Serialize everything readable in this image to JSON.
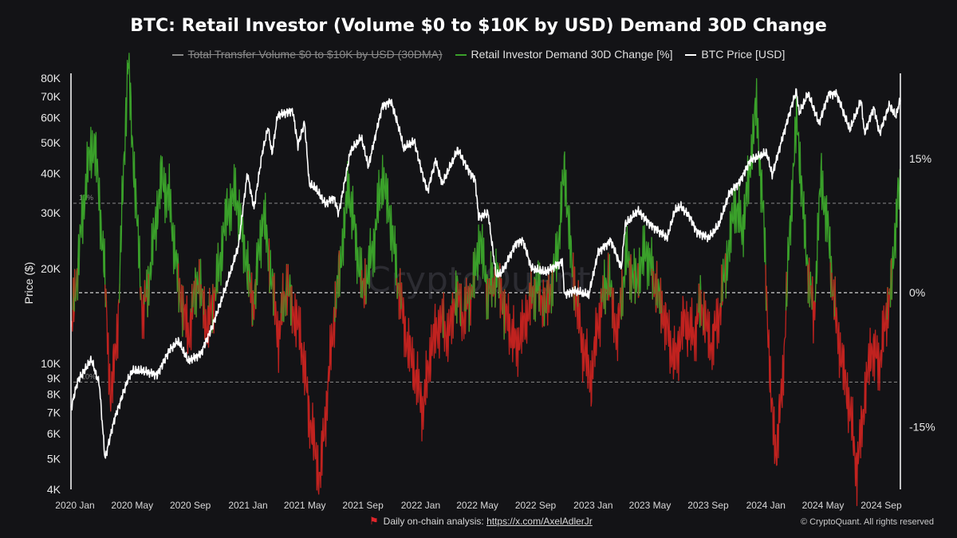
{
  "title": "BTC: Retail Investor (Volume $0 to $10K by USD) Demand 30D Change",
  "legend": [
    {
      "label": "Total Transfer Volume  $0 to $10K by USD (30DMA)",
      "color": "#8a8a8a",
      "state": "hidden"
    },
    {
      "label": "Retail Investor Demand 30D Change [%]",
      "color": "#3aa02a",
      "state": "visible"
    },
    {
      "label": "BTC Price [USD]",
      "color": "#ffffff",
      "state": "visible"
    }
  ],
  "footer": {
    "prefix": "Daily on-chain analysis: ",
    "link": "https://x.com/AxelAdlerJr"
  },
  "copyright": "© CryptoQuant. All rights reserved",
  "watermark": "CryptoQuant",
  "colors": {
    "positive": "#3aa02a",
    "negative": "#c0221f",
    "price": "#ffffff",
    "background": "#131316"
  },
  "chart_data": {
    "type": "line",
    "title": "BTC: Retail Investor (Volume $0 to $10K by USD) Demand 30D Change",
    "xlabel": "",
    "ylabel": "Price ($)",
    "y_scale": "log",
    "ylim": [
      4000,
      80000
    ],
    "y2lim": [
      -22,
      24
    ],
    "xlim": [
      "2020-01-01",
      "2024-10-20"
    ],
    "x_ticks": [
      {
        "date": "2020-01-01",
        "label": "2020 Jan"
      },
      {
        "date": "2020-05-01",
        "label": "2020 May"
      },
      {
        "date": "2020-09-01",
        "label": "2020 Sep"
      },
      {
        "date": "2021-01-01",
        "label": "2021 Jan"
      },
      {
        "date": "2021-05-01",
        "label": "2021 May"
      },
      {
        "date": "2021-09-01",
        "label": "2021 Sep"
      },
      {
        "date": "2022-01-01",
        "label": "2022 Jan"
      },
      {
        "date": "2022-05-01",
        "label": "2022 May"
      },
      {
        "date": "2022-09-01",
        "label": "2022 Sep"
      },
      {
        "date": "2023-01-01",
        "label": "2023 Jan"
      },
      {
        "date": "2023-05-01",
        "label": "2023 May"
      },
      {
        "date": "2023-09-01",
        "label": "2023 Sep"
      },
      {
        "date": "2024-01-01",
        "label": "2024 Jan"
      },
      {
        "date": "2024-05-01",
        "label": "2024 May"
      },
      {
        "date": "2024-09-01",
        "label": "2024 Sep"
      }
    ],
    "y_ticks": [
      {
        "value": 4000,
        "label": "4K"
      },
      {
        "value": 5000,
        "label": "5K"
      },
      {
        "value": 6000,
        "label": "6K"
      },
      {
        "value": 7000,
        "label": "7K"
      },
      {
        "value": 8000,
        "label": "8K"
      },
      {
        "value": 9000,
        "label": "9K"
      },
      {
        "value": 10000,
        "label": "10K"
      },
      {
        "value": 20000,
        "label": "20K"
      },
      {
        "value": 30000,
        "label": "30K"
      },
      {
        "value": 40000,
        "label": "40K"
      },
      {
        "value": 50000,
        "label": "50K"
      },
      {
        "value": 60000,
        "label": "60K"
      },
      {
        "value": 70000,
        "label": "70K"
      },
      {
        "value": 80000,
        "label": "80K"
      }
    ],
    "y2_ticks": [
      {
        "value": 15,
        "label": "15%"
      },
      {
        "value": 0,
        "label": "0%"
      },
      {
        "value": -15,
        "label": "-15%"
      }
    ],
    "reference_lines": [
      {
        "value": 10,
        "label": "10%"
      },
      {
        "value": 0,
        "label": ""
      },
      {
        "value": -10,
        "label": "-10%"
      }
    ],
    "series": [
      {
        "name": "BTC Price [USD]",
        "axis": "left",
        "color": "#ffffff",
        "points": [
          [
            "2020-01-01",
            7200
          ],
          [
            "2020-01-15",
            8800
          ],
          [
            "2020-02-13",
            10300
          ],
          [
            "2020-03-01",
            8600
          ],
          [
            "2020-03-13",
            5000
          ],
          [
            "2020-04-01",
            6600
          ],
          [
            "2020-04-29",
            8800
          ],
          [
            "2020-05-10",
            9500
          ],
          [
            "2020-06-01",
            9500
          ],
          [
            "2020-07-01",
            9200
          ],
          [
            "2020-07-27",
            11000
          ],
          [
            "2020-08-15",
            11800
          ],
          [
            "2020-09-05",
            10200
          ],
          [
            "2020-10-01",
            10700
          ],
          [
            "2020-10-25",
            13000
          ],
          [
            "2020-11-15",
            16000
          ],
          [
            "2020-12-01",
            19000
          ],
          [
            "2020-12-20",
            23500
          ],
          [
            "2021-01-08",
            40000
          ],
          [
            "2021-01-22",
            31000
          ],
          [
            "2021-02-08",
            46000
          ],
          [
            "2021-02-21",
            56000
          ],
          [
            "2021-03-01",
            46000
          ],
          [
            "2021-03-13",
            61000
          ],
          [
            "2021-04-14",
            63000
          ],
          [
            "2021-04-25",
            49000
          ],
          [
            "2021-05-09",
            58000
          ],
          [
            "2021-05-19",
            37000
          ],
          [
            "2021-06-01",
            36000
          ],
          [
            "2021-06-22",
            32000
          ],
          [
            "2021-07-10",
            33500
          ],
          [
            "2021-07-20",
            29800
          ],
          [
            "2021-08-14",
            47000
          ],
          [
            "2021-09-06",
            52000
          ],
          [
            "2021-09-21",
            42000
          ],
          [
            "2021-10-20",
            65000
          ],
          [
            "2021-11-08",
            67500
          ],
          [
            "2021-11-27",
            54000
          ],
          [
            "2021-12-04",
            48000
          ],
          [
            "2021-12-27",
            50500
          ],
          [
            "2022-01-10",
            41500
          ],
          [
            "2022-01-24",
            35000
          ],
          [
            "2022-02-10",
            44000
          ],
          [
            "2022-02-24",
            37000
          ],
          [
            "2022-03-29",
            47500
          ],
          [
            "2022-04-20",
            41000
          ],
          [
            "2022-05-05",
            38000
          ],
          [
            "2022-05-12",
            29000
          ],
          [
            "2022-06-01",
            30000
          ],
          [
            "2022-06-18",
            19000
          ],
          [
            "2022-07-01",
            19500
          ],
          [
            "2022-07-30",
            24000
          ],
          [
            "2022-08-14",
            24500
          ],
          [
            "2022-09-01",
            20000
          ],
          [
            "2022-10-01",
            19500
          ],
          [
            "2022-11-05",
            21000
          ],
          [
            "2022-11-10",
            16500
          ],
          [
            "2022-12-01",
            17000
          ],
          [
            "2022-12-31",
            16500
          ],
          [
            "2023-01-20",
            22500
          ],
          [
            "2023-02-16",
            24500
          ],
          [
            "2023-03-10",
            20000
          ],
          [
            "2023-03-18",
            27500
          ],
          [
            "2023-04-14",
            30500
          ],
          [
            "2023-05-10",
            27500
          ],
          [
            "2023-06-15",
            25000
          ],
          [
            "2023-07-01",
            30500
          ],
          [
            "2023-07-13",
            31500
          ],
          [
            "2023-08-01",
            29200
          ],
          [
            "2023-08-17",
            26000
          ],
          [
            "2023-09-11",
            25000
          ],
          [
            "2023-10-02",
            27500
          ],
          [
            "2023-10-24",
            34500
          ],
          [
            "2023-11-15",
            37500
          ],
          [
            "2023-12-08",
            44000
          ],
          [
            "2024-01-11",
            46500
          ],
          [
            "2024-01-23",
            39500
          ],
          [
            "2024-02-14",
            52000
          ],
          [
            "2024-03-05",
            66000
          ],
          [
            "2024-03-14",
            73000
          ],
          [
            "2024-03-20",
            62000
          ],
          [
            "2024-04-08",
            71500
          ],
          [
            "2024-05-01",
            57500
          ],
          [
            "2024-05-21",
            71000
          ],
          [
            "2024-06-07",
            71500
          ],
          [
            "2024-07-05",
            55000
          ],
          [
            "2024-07-29",
            68000
          ],
          [
            "2024-08-05",
            53500
          ],
          [
            "2024-08-25",
            64500
          ],
          [
            "2024-09-06",
            53500
          ],
          [
            "2024-09-27",
            66000
          ],
          [
            "2024-10-10",
            60500
          ],
          [
            "2024-10-20",
            68500
          ]
        ]
      },
      {
        "name": "Retail Investor Demand 30D Change [%]",
        "axis": "right",
        "color_positive": "#3aa02a",
        "color_negative": "#c0221f",
        "points": [
          [
            "2020-01-01",
            -5
          ],
          [
            "2020-01-15",
            3
          ],
          [
            "2020-02-05",
            14
          ],
          [
            "2020-02-20",
            17
          ],
          [
            "2020-03-10",
            4
          ],
          [
            "2020-03-25",
            -12
          ],
          [
            "2020-04-10",
            -3
          ],
          [
            "2020-04-22",
            15
          ],
          [
            "2020-05-01",
            26
          ],
          [
            "2020-05-15",
            12
          ],
          [
            "2020-06-01",
            -3
          ],
          [
            "2020-06-20",
            4
          ],
          [
            "2020-07-10",
            13
          ],
          [
            "2020-07-28",
            10
          ],
          [
            "2020-08-15",
            1
          ],
          [
            "2020-09-05",
            -5
          ],
          [
            "2020-09-25",
            2
          ],
          [
            "2020-10-15",
            -4
          ],
          [
            "2020-11-05",
            1
          ],
          [
            "2020-11-25",
            9
          ],
          [
            "2020-12-15",
            11
          ],
          [
            "2021-01-05",
            4
          ],
          [
            "2021-01-20",
            -2
          ],
          [
            "2021-02-10",
            9
          ],
          [
            "2021-02-25",
            3
          ],
          [
            "2021-03-15",
            -5
          ],
          [
            "2021-04-01",
            1
          ],
          [
            "2021-04-15",
            -2
          ],
          [
            "2021-05-01",
            -5
          ],
          [
            "2021-05-20",
            -14
          ],
          [
            "2021-06-10",
            -21
          ],
          [
            "2021-06-25",
            -12
          ],
          [
            "2021-07-10",
            -3
          ],
          [
            "2021-07-25",
            4
          ],
          [
            "2021-08-10",
            12
          ],
          [
            "2021-08-25",
            6
          ],
          [
            "2021-09-10",
            0
          ],
          [
            "2021-10-01",
            5
          ],
          [
            "2021-10-20",
            13
          ],
          [
            "2021-11-05",
            9
          ],
          [
            "2021-11-20",
            2
          ],
          [
            "2021-12-10",
            -5
          ],
          [
            "2021-12-28",
            -9
          ],
          [
            "2022-01-15",
            -13
          ],
          [
            "2022-02-01",
            -6
          ],
          [
            "2022-02-20",
            -3
          ],
          [
            "2022-03-10",
            -5
          ],
          [
            "2022-03-25",
            0
          ],
          [
            "2022-04-10",
            -3
          ],
          [
            "2022-05-01",
            1
          ],
          [
            "2022-05-15",
            6
          ],
          [
            "2022-06-01",
            0
          ],
          [
            "2022-06-20",
            2
          ],
          [
            "2022-07-10",
            -3
          ],
          [
            "2022-07-30",
            -6
          ],
          [
            "2022-08-20",
            -3
          ],
          [
            "2022-09-10",
            1
          ],
          [
            "2022-10-01",
            -2
          ],
          [
            "2022-10-25",
            4
          ],
          [
            "2022-11-10",
            14
          ],
          [
            "2022-11-25",
            3
          ],
          [
            "2022-12-15",
            -5
          ],
          [
            "2023-01-05",
            -10
          ],
          [
            "2023-01-20",
            -3
          ],
          [
            "2023-02-10",
            2
          ],
          [
            "2023-03-01",
            -5
          ],
          [
            "2023-03-20",
            4
          ],
          [
            "2023-04-10",
            1
          ],
          [
            "2023-05-01",
            5
          ],
          [
            "2023-05-20",
            1
          ],
          [
            "2023-06-10",
            -3
          ],
          [
            "2023-07-01",
            -8
          ],
          [
            "2023-07-20",
            -3
          ],
          [
            "2023-08-10",
            -5
          ],
          [
            "2023-08-25",
            -1
          ],
          [
            "2023-09-15",
            -6
          ],
          [
            "2023-10-01",
            -3
          ],
          [
            "2023-10-20",
            4
          ],
          [
            "2023-11-05",
            10
          ],
          [
            "2023-11-20",
            7
          ],
          [
            "2023-12-05",
            13
          ],
          [
            "2023-12-20",
            21
          ],
          [
            "2024-01-05",
            8
          ],
          [
            "2024-01-20",
            -12
          ],
          [
            "2024-02-01",
            -18
          ],
          [
            "2024-02-15",
            -9
          ],
          [
            "2024-03-01",
            8
          ],
          [
            "2024-03-15",
            20
          ],
          [
            "2024-04-01",
            6
          ],
          [
            "2024-04-20",
            -3
          ],
          [
            "2024-05-05",
            13
          ],
          [
            "2024-05-20",
            7
          ],
          [
            "2024-06-05",
            -3
          ],
          [
            "2024-06-20",
            -8
          ],
          [
            "2024-07-05",
            -13
          ],
          [
            "2024-07-20",
            -20
          ],
          [
            "2024-08-05",
            -12
          ],
          [
            "2024-08-20",
            -6
          ],
          [
            "2024-09-05",
            -8
          ],
          [
            "2024-09-20",
            -3
          ],
          [
            "2024-10-05",
            3
          ],
          [
            "2024-10-15",
            12
          ],
          [
            "2024-10-20",
            9
          ]
        ]
      }
    ]
  }
}
